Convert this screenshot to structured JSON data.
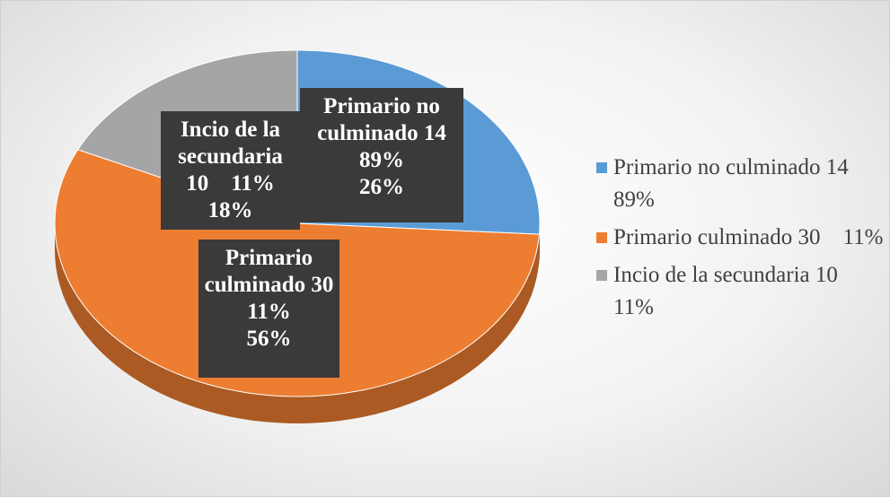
{
  "chart_data": {
    "type": "pie",
    "categories": [
      "Primario no culminado 14    89%",
      "Primario culminado 30    11%",
      "Incio de la secundaria 10    11%"
    ],
    "values": [
      26,
      56,
      18
    ],
    "value_labels": [
      "26%",
      "56%",
      "18%"
    ],
    "colors": [
      "#5b9bd5",
      "#ed7d31",
      "#a5a5a5"
    ],
    "legend": "right"
  }
}
